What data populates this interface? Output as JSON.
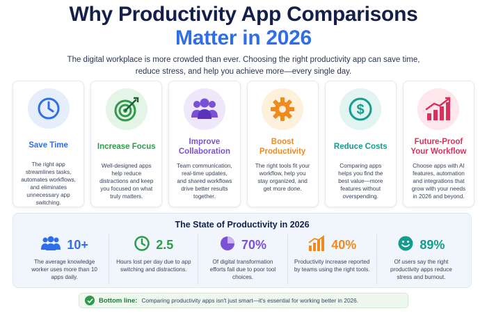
{
  "header": {
    "title_line1": "Why Productivity App Comparisons",
    "title_line2": "Matter in 2026",
    "subtitle": "The digital workplace is more crowded than ever. Choosing the right productivity app can save time, reduce stress, and help you achieve more—every single day."
  },
  "cards": [
    {
      "title": "Save Time",
      "icon": "clock-icon",
      "color": "#2f6ee8",
      "bg": "#e6eefc",
      "desc": "The right app streamlines tasks, automates workflows, and eliminates unnecessary app switching."
    },
    {
      "title": "Increase Focus",
      "icon": "target-icon",
      "color": "#2e9a4a",
      "bg": "#e4f5e7",
      "desc": "Well-designed apps help reduce distractions and keep you focused on what truly matters."
    },
    {
      "title": "Improve Collaboration",
      "icon": "team-icon",
      "color": "#7b4fd6",
      "bg": "#efe8fb",
      "desc": "Team communication, real-time updates, and shared workflows drive better results together."
    },
    {
      "title": "Boost Productivity",
      "icon": "gear-icon",
      "color": "#f08a1c",
      "bg": "#fdf1dc",
      "desc": "The right tools fit your workflow, help you stay organized, and get more done."
    },
    {
      "title": "Reduce Costs",
      "icon": "dollar-icon",
      "color": "#149c8c",
      "bg": "#e1f4f1",
      "desc": "Comparing apps helps you find the best value—more features without overspending."
    },
    {
      "title": "Future-Proof Your Workflow",
      "icon": "growth-chart-icon",
      "color": "#d8315b",
      "bg": "#fde6ec",
      "desc": "Choose apps with AI features, automation and integrations that grow with your needs in 2026 and beyond."
    }
  ],
  "stats": {
    "heading": "The State of Productivity in 2026",
    "items": [
      {
        "value": "10+",
        "icon": "users-icon",
        "color": "#2f6ee8",
        "desc": "The average knowledge worker uses more than 10 apps daily."
      },
      {
        "value": "2.5",
        "icon": "clock-icon",
        "color": "#2e9a4a",
        "desc": "Hours lost per day due to app switching and distractions."
      },
      {
        "value": "70%",
        "icon": "pie-chart-icon",
        "color": "#7b4fd6",
        "desc": "Of digital transformation efforts fail due to poor tool choices."
      },
      {
        "value": "40%",
        "icon": "bar-chart-icon",
        "color": "#f08a1c",
        "desc": "Productivity increase reported by teams using the right tools."
      },
      {
        "value": "89%",
        "icon": "smile-icon",
        "color": "#149c8c",
        "desc": "Of users say the right productivity apps reduce stress and burnout."
      }
    ]
  },
  "bottom_line": {
    "label": "Bottom line:",
    "text": "Comparing productivity apps isn't just smart—it's essential for working better in 2026."
  }
}
